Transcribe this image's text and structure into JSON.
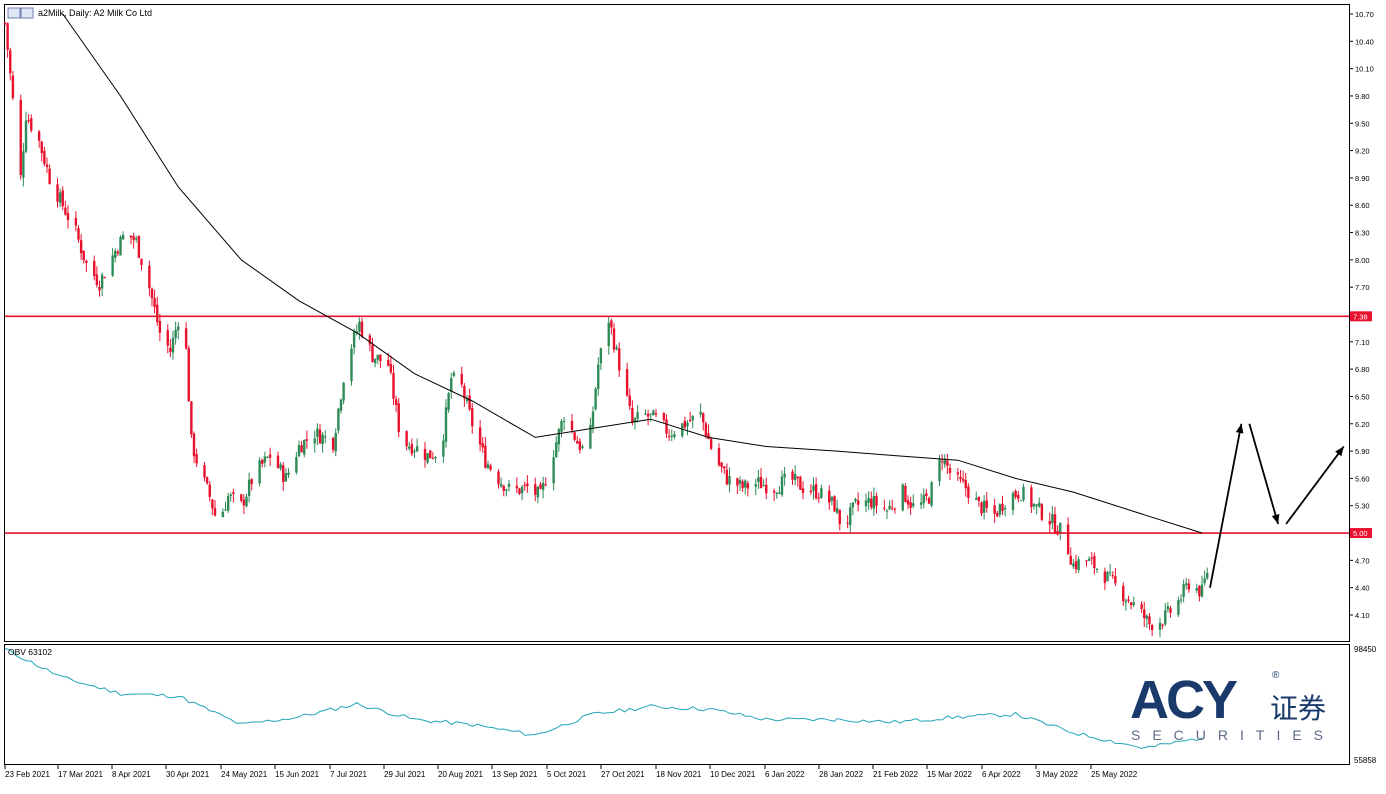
{
  "window": {
    "symbol_title": "a2Milk, Daily:  A2 Milk Co Ltd"
  },
  "indicator": {
    "label": "OBV 63102",
    "axis_top": "98450",
    "axis_bottom": "55858"
  },
  "logo": {
    "brand": "ACY",
    "cn_text": "证券",
    "sub": "SECURITIES",
    "registered": "®"
  },
  "colors": {
    "candle_up": "#2e8b57",
    "candle_down": "#e8112d",
    "level_line": "#e8112d",
    "ma_line": "#000000",
    "obv_line": "#21a5b5",
    "logo_blue": "#1a3a6b"
  },
  "chart_data": [
    {
      "type": "candlestick",
      "title": "a2Milk, Daily:  A2 Milk Co Ltd",
      "y_ticks": [
        "10.70",
        "10.40",
        "10.10",
        "9.80",
        "9.50",
        "9.20",
        "8.90",
        "8.60",
        "8.30",
        "8.00",
        "7.70",
        "7.10",
        "6.80",
        "6.50",
        "6.20",
        "5.90",
        "5.60",
        "5.30",
        "4.70",
        "4.40",
        "4.10"
      ],
      "ylim": [
        3.83,
        10.78
      ],
      "x_labels": [
        "23 Feb 2021",
        "17 Mar 2021",
        "8 Apr 2021",
        "30 Apr 2021",
        "24 May 2021",
        "15 Jun 2021",
        "7 Jul 2021",
        "29 Jul 2021",
        "20 Aug 2021",
        "13 Sep 2021",
        "5 Oct 2021",
        "27 Oct 2021",
        "18 Nov 2021",
        "10 Dec 2021",
        "6 Jan 2022",
        "28 Jan 2022",
        "21 Feb 2022",
        "15 Mar 2022",
        "6 Apr 2022",
        "3 May 2022",
        "25 May 2022"
      ],
      "levels": [
        {
          "value": 7.38,
          "label": "7.38"
        },
        {
          "value": 5.0,
          "label": "5.00"
        }
      ],
      "close_path": [
        [
          "23 Feb 2021",
          10.6
        ],
        [
          "1 Mar 2021",
          8.9
        ],
        [
          "3 Mar 2021",
          9.6
        ],
        [
          "8 Mar 2021",
          9.3
        ],
        [
          "12 Mar 2021",
          8.9
        ],
        [
          "17 Mar 2021",
          8.6
        ],
        [
          "22 Mar 2021",
          8.3
        ],
        [
          "26 Mar 2021",
          7.95
        ],
        [
          "31 Mar 2021",
          7.75
        ],
        [
          "6 Apr 2021",
          8.1
        ],
        [
          "10 Apr 2021",
          8.3
        ],
        [
          "14 Apr 2021",
          8.2
        ],
        [
          "19 Apr 2021",
          7.7
        ],
        [
          "23 Apr 2021",
          7.2
        ],
        [
          "27 Apr 2021",
          7.0
        ],
        [
          "30 Apr 2021",
          7.35
        ],
        [
          "3 May 2021",
          7.0
        ],
        [
          "5 May 2021",
          6.0
        ],
        [
          "8 May 2021",
          5.7
        ],
        [
          "12 May 2021",
          5.4
        ],
        [
          "15 May 2021",
          5.1
        ],
        [
          "19 May 2021",
          5.4
        ],
        [
          "24 May 2021",
          5.3
        ],
        [
          "29 May 2021",
          5.65
        ],
        [
          "4 Jun 2021",
          5.85
        ],
        [
          "10 Jun 2021",
          5.6
        ],
        [
          "15 Jun 2021",
          5.95
        ],
        [
          "21 Jun 2021",
          6.1
        ],
        [
          "28 Jun 2021",
          6.0
        ],
        [
          "3 Jul 2021",
          6.9
        ],
        [
          "8 Jul 2021",
          7.3
        ],
        [
          "13 Jul 2021",
          6.95
        ],
        [
          "19 Jul 2021",
          6.85
        ],
        [
          "24 Jul 2021",
          6.0
        ],
        [
          "29 Jul 2021",
          5.95
        ],
        [
          "3 Aug 2021",
          5.85
        ],
        [
          "8 Aug 2021",
          5.9
        ],
        [
          "12 Aug 2021",
          6.7
        ],
        [
          "16 Aug 2021",
          6.6
        ],
        [
          "20 Aug 2021",
          6.2
        ],
        [
          "25 Aug 2021",
          5.8
        ],
        [
          "30 Aug 2021",
          5.6
        ],
        [
          "4 Sep 2021",
          5.45
        ],
        [
          "10 Sep 2021",
          5.5
        ],
        [
          "15 Sep 2021",
          5.4
        ],
        [
          "19 Sep 2021",
          5.8
        ],
        [
          "24 Sep 2021",
          6.3
        ],
        [
          "29 Sep 2021",
          6.0
        ],
        [
          "3 Oct 2021",
          5.85
        ],
        [
          "7 Oct 2021",
          6.85
        ],
        [
          "11 Oct 2021",
          7.35
        ],
        [
          "15 Oct 2021",
          6.85
        ],
        [
          "20 Oct 2021",
          6.2
        ],
        [
          "24 Oct 2021",
          6.3
        ],
        [
          "29 Oct 2021",
          6.25
        ],
        [
          "3 Nov 2021",
          6.1
        ],
        [
          "9 Nov 2021",
          6.2
        ],
        [
          "15 Nov 2021",
          6.3
        ],
        [
          "20 Nov 2021",
          5.85
        ],
        [
          "25 Nov 2021",
          5.6
        ],
        [
          "1 Dec 2021",
          5.5
        ],
        [
          "7 Dec 2021",
          5.55
        ],
        [
          "13 Dec 2021",
          5.5
        ],
        [
          "19 Dec 2021",
          5.6
        ],
        [
          "24 Dec 2021",
          5.5
        ],
        [
          "30 Dec 2021",
          5.45
        ],
        [
          "5 Jan 2022",
          5.3
        ],
        [
          "8 Jan 2022",
          5.05
        ],
        [
          "13 Jan 2022",
          5.3
        ],
        [
          "19 Jan 2022",
          5.35
        ],
        [
          "25 Jan 2022",
          5.25
        ],
        [
          "31 Jan 2022",
          5.45
        ],
        [
          "5 Feb 2022",
          5.25
        ],
        [
          "10 Feb 2022",
          5.4
        ],
        [
          "15 Feb 2022",
          5.85
        ],
        [
          "19 Feb 2022",
          5.6
        ],
        [
          "24 Feb 2022",
          5.5
        ],
        [
          "1 Mar 2022",
          5.3
        ],
        [
          "7 Mar 2022",
          5.2
        ],
        [
          "12 Mar 2022",
          5.4
        ],
        [
          "17 Mar 2022",
          5.45
        ],
        [
          "22 Mar 2022",
          5.3
        ],
        [
          "28 Mar 2022",
          5.15
        ],
        [
          "2 Apr 2022",
          5.0
        ],
        [
          "6 Apr 2022",
          4.65
        ],
        [
          "11 Apr 2022",
          4.7
        ],
        [
          "16 Apr 2022",
          4.6
        ],
        [
          "21 Apr 2022",
          4.45
        ],
        [
          "26 Apr 2022",
          4.3
        ],
        [
          "1 May 2022",
          4.15
        ],
        [
          "5 May 2022",
          4.0
        ],
        [
          "10 May 2022",
          4.05
        ],
        [
          "15 May 2022",
          4.2
        ],
        [
          "20 May 2022",
          4.45
        ],
        [
          "25 May 2022",
          4.35
        ],
        [
          "28 May 2022",
          4.7
        ]
      ],
      "moving_average": [
        [
          "17 Mar 2021",
          10.7
        ],
        [
          "8 Apr 2021",
          9.8
        ],
        [
          "30 Apr 2021",
          8.8
        ],
        [
          "24 May 2021",
          8.0
        ],
        [
          "15 Jun 2021",
          7.55
        ],
        [
          "7 Jul 2021",
          7.2
        ],
        [
          "29 Jul 2021",
          6.75
        ],
        [
          "20 Aug 2021",
          6.45
        ],
        [
          "13 Sep 2021",
          6.05
        ],
        [
          "5 Oct 2021",
          6.15
        ],
        [
          "27 Oct 2021",
          6.25
        ],
        [
          "18 Nov 2021",
          6.05
        ],
        [
          "10 Dec 2021",
          5.95
        ],
        [
          "6 Jan 2022",
          5.9
        ],
        [
          "28 Jan 2022",
          5.85
        ],
        [
          "21 Feb 2022",
          5.8
        ],
        [
          "15 Mar 2022",
          5.6
        ],
        [
          "6 Apr 2022",
          5.45
        ],
        [
          "3 May 2022",
          5.2
        ],
        [
          "25 May 2022",
          5.0
        ]
      ],
      "projection": [
        [
          "25 May 2022",
          4.4
        ],
        [
          "9 Jun 2022",
          6.2
        ],
        [
          "23 Jun 2022",
          5.1
        ],
        [
          "18 Jul 2022",
          5.95
        ]
      ]
    },
    {
      "type": "line",
      "title": "OBV 63102",
      "ylim": [
        55858,
        98450
      ],
      "x_labels": [
        "23 Feb 2021",
        "17 Mar 2021",
        "8 Apr 2021",
        "30 Apr 2021",
        "24 May 2021",
        "15 Jun 2021",
        "7 Jul 2021",
        "29 Jul 2021",
        "20 Aug 2021",
        "13 Sep 2021",
        "5 Oct 2021",
        "27 Oct 2021",
        "18 Nov 2021",
        "10 Dec 2021",
        "6 Jan 2022",
        "28 Jan 2022",
        "21 Feb 2022",
        "15 Mar 2022",
        "6 Apr 2022",
        "3 May 2022",
        "25 May 2022"
      ],
      "series": [
        {
          "values": [
            [
              "23 Feb 2021",
              98000
            ],
            [
              "17 Mar 2021",
              87000
            ],
            [
              "8 Apr 2021",
              81000
            ],
            [
              "30 Apr 2021",
              80000
            ],
            [
              "24 May 2021",
              69000
            ],
            [
              "15 Jun 2021",
              72000
            ],
            [
              "7 Jul 2021",
              77000
            ],
            [
              "29 Jul 2021",
              71000
            ],
            [
              "20 Aug 2021",
              69000
            ],
            [
              "13 Sep 2021",
              65000
            ],
            [
              "5 Oct 2021",
              73000
            ],
            [
              "27 Oct 2021",
              76000
            ],
            [
              "18 Nov 2021",
              75000
            ],
            [
              "10 Dec 2021",
              71000
            ],
            [
              "6 Jan 2022",
              71000
            ],
            [
              "28 Jan 2022",
              70000
            ],
            [
              "21 Feb 2022",
              72000
            ],
            [
              "15 Mar 2022",
              73000
            ],
            [
              "6 Apr 2022",
              66000
            ],
            [
              "3 May 2022",
              60000
            ],
            [
              "25 May 2022",
              64000
            ]
          ]
        }
      ]
    }
  ]
}
